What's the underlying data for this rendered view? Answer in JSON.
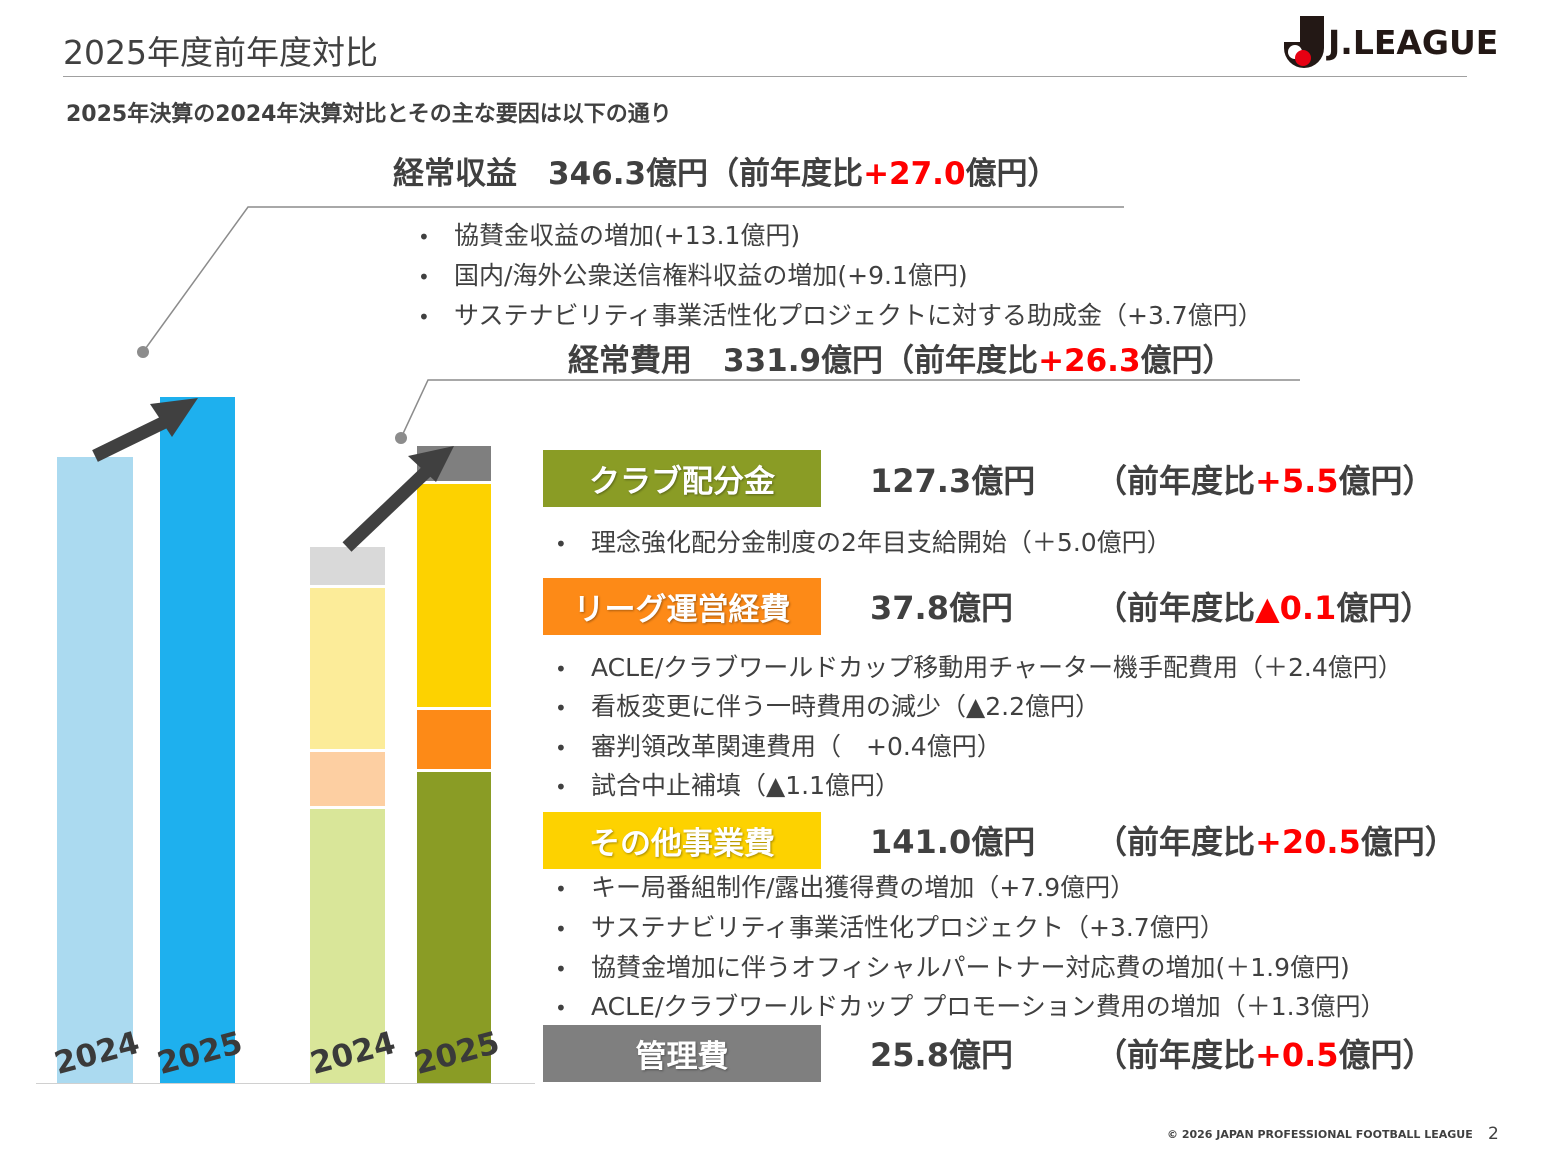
{
  "header": {
    "title": "2025年度前年度対比",
    "logo_text": "J.LEAGUE"
  },
  "subtitle": "2025年決算の2024年決算対比とその主な要因は以下の通り",
  "revenue": {
    "label": "経常収益",
    "amount": "346.3億円（前年度比",
    "delta": "+27.0",
    "suffix": "億円）",
    "bullets": [
      "協賛金収益の増加(+13.1億円)",
      "国内/海外公衆送信権料収益の増加(+9.1億円)",
      "サステナビリティ事業活性化プロジェクトに対する助成金（+3.7億円）"
    ]
  },
  "expense": {
    "label": "経常費用",
    "amount": "331.9億円（前年度比",
    "delta": "+26.3",
    "suffix": "億円）"
  },
  "categories": [
    {
      "label": "クラブ配分金",
      "value": "127.3億円",
      "cmp_prefix": "（前年度比",
      "delta": "+5.5",
      "cmp_suffix": "億円）",
      "color": "#8a9c25",
      "bullets": [
        "理念強化配分金制度の2年目支給開始（＋5.0億円）"
      ]
    },
    {
      "label": "リーグ運営経費",
      "value": "37.8億円",
      "cmp_prefix": "（前年度比",
      "delta": "▲0.1",
      "cmp_suffix": "億円）",
      "color": "#fd8a17",
      "bullets": [
        "ACLE/クラブワールドカップ移動用チャーター機手配費用（＋2.4億円）",
        "看板変更に伴う一時費用の減少（▲2.2億円）",
        "審判領改革関連費用（　+0.4億円）",
        "試合中止補填（▲1.1億円）"
      ]
    },
    {
      "label": "その他事業費",
      "value": "141.0億円",
      "cmp_prefix": "（前年度比",
      "delta": "+20.5",
      "cmp_suffix": "億円）",
      "color": "#fdd200",
      "bullets": [
        "キー局番組制作/露出獲得費の増加（+7.9億円）",
        "サステナビリティ事業活性化プロジェクト（+3.7億円）",
        "協賛金増加に伴うオフィシャルパートナー対応費の増加(＋1.9億円)",
        "ACLE/クラブワールドカップ プロモーション費用の増加（＋1.3億円）"
      ]
    },
    {
      "label": "管理費",
      "value": "25.8億円",
      "cmp_prefix": "（前年度比",
      "delta": "+0.5",
      "cmp_suffix": "億円）",
      "color": "#7f7f7f",
      "bullets": []
    }
  ],
  "bars": {
    "years": [
      "2024",
      "2025",
      "2024",
      "2025"
    ]
  },
  "footer": {
    "copyright": "© 2026 JAPAN PROFESSIONAL FOOTBALL LEAGUE",
    "page": "2"
  }
}
